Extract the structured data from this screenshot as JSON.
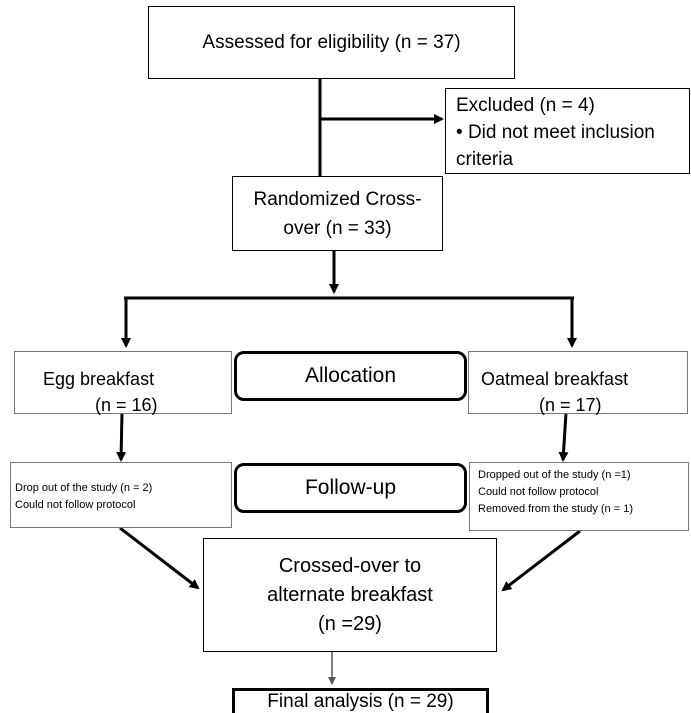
{
  "assessed": {
    "text": "Assessed for eligibility (n = 37)"
  },
  "excluded": {
    "title": "Excluded (n = 4)",
    "bullet": "•",
    "line1": "Did not meet inclusion",
    "line2": "criteria"
  },
  "randomized": {
    "line1": "Randomized Cross-",
    "line2": "over  (n = 33)"
  },
  "allocation": {
    "label": "Allocation"
  },
  "followup": {
    "label": "Follow-up"
  },
  "egg": {
    "line1": "Egg breakfast",
    "line2": "(n = 16)"
  },
  "oatmeal": {
    "line1": "Oatmeal breakfast",
    "line2": "(n = 17)"
  },
  "egg_followup": {
    "line1": "Drop out of the study (n = 2)",
    "line2": "Could not follow protocol"
  },
  "oat_followup": {
    "line1": "Dropped out of the study (n =1)",
    "line2": "Could not follow protocol",
    "line3": "Removed from the study (n = 1)"
  },
  "crossover": {
    "line1": "Crossed-over to",
    "line2": "alternate breakfast",
    "line3": "(n =29)"
  },
  "final": {
    "text": "Final analysis (n = 29)"
  }
}
